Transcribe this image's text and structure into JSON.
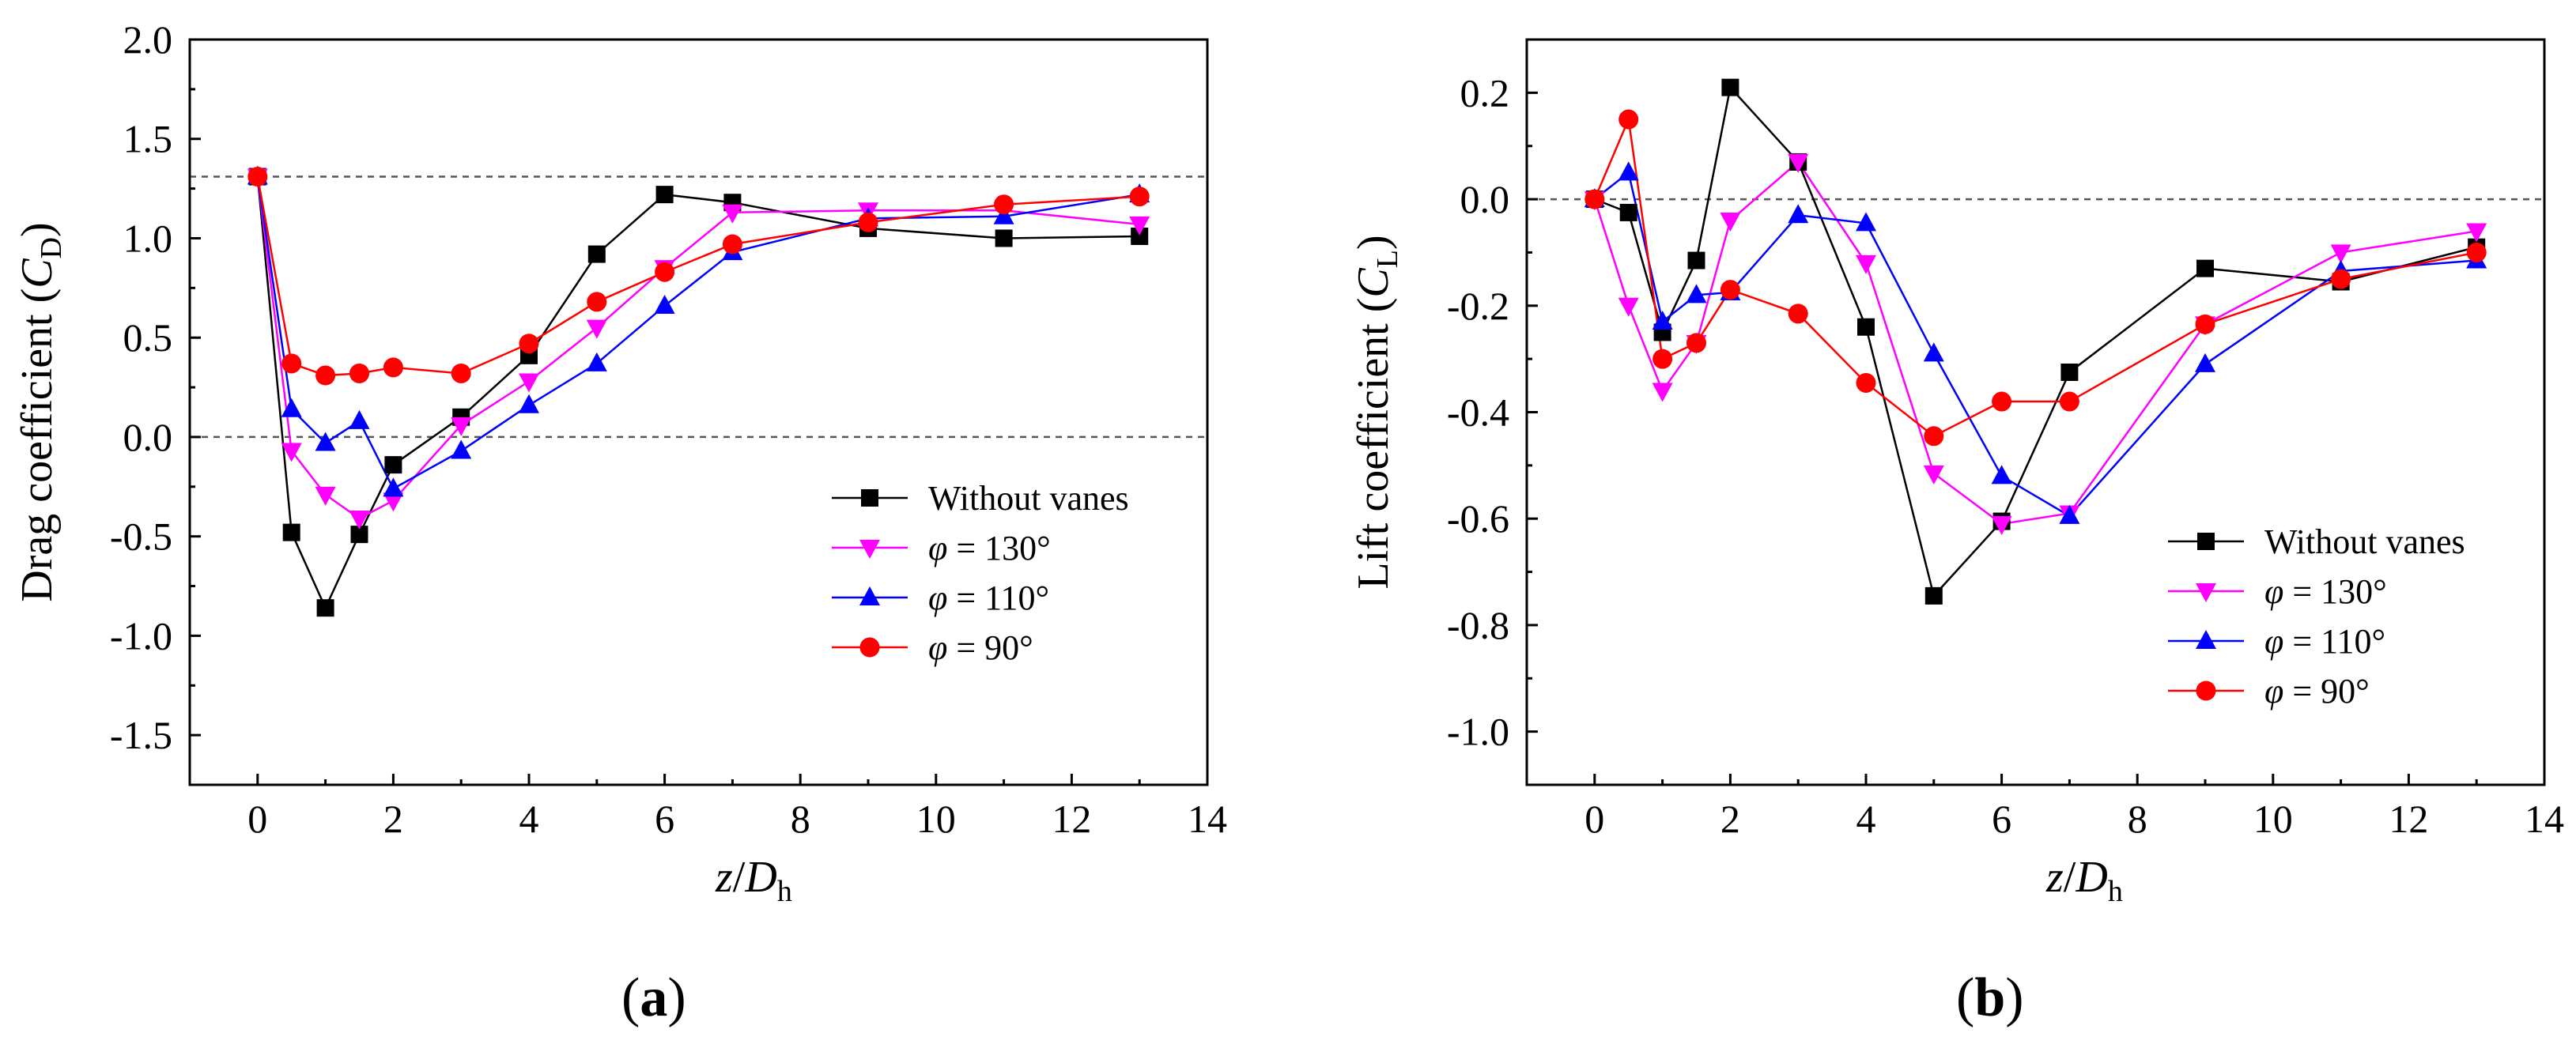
{
  "chart_data": [
    {
      "type": "line",
      "panel": "(a)",
      "panel_letter": "a",
      "ylabel": {
        "prefix": "Drag coefficient (",
        "var": "C",
        "sub": "D",
        "suffix": ")"
      },
      "xlabel": {
        "var": "z",
        "slash": "/",
        "var2": "D",
        "sub": "h"
      },
      "xlim": [
        -1,
        14
      ],
      "ylim": [
        -1.75,
        2.0
      ],
      "xticks": [
        0,
        2,
        4,
        6,
        8,
        10,
        12,
        14
      ],
      "yticks": [
        2.0,
        1.5,
        1.0,
        0.5,
        0.0,
        -0.5,
        -1.0,
        -1.5
      ],
      "ytick_labels": [
        "2.0",
        "1.5",
        "1.0",
        "0.5",
        "0.0",
        "-0.5",
        "-1.0",
        "-1.5"
      ],
      "ref_lines": [
        1.31,
        0.0
      ],
      "legend_position": "right-middle",
      "series": [
        {
          "name": "Without vanes",
          "color": "#000000",
          "marker": "square",
          "x": [
            0,
            0.5,
            1,
            1.5,
            2,
            3,
            4,
            5,
            6,
            7,
            9,
            11,
            13
          ],
          "y": [
            1.31,
            -0.48,
            -0.86,
            -0.49,
            -0.14,
            0.1,
            0.41,
            0.92,
            1.22,
            1.18,
            1.05,
            1.0,
            1.01
          ]
        },
        {
          "name": "φ = 130°",
          "var": "φ",
          "value": " = 130°",
          "color": "#ff00ff",
          "marker": "triangle-down",
          "x": [
            0,
            0.5,
            1,
            1.5,
            2,
            3,
            4,
            5,
            6,
            7,
            9,
            11,
            13
          ],
          "y": [
            1.31,
            -0.07,
            -0.29,
            -0.41,
            -0.32,
            0.06,
            0.28,
            0.55,
            0.85,
            1.13,
            1.14,
            1.14,
            1.07
          ]
        },
        {
          "name": "φ = 110°",
          "var": "φ",
          "value": " = 110°",
          "color": "#0000ff",
          "marker": "triangle-up",
          "x": [
            0,
            0.5,
            1,
            1.5,
            2,
            3,
            4,
            5,
            6,
            7,
            9,
            11,
            13
          ],
          "y": [
            1.31,
            0.14,
            -0.03,
            0.08,
            -0.26,
            -0.07,
            0.16,
            0.37,
            0.66,
            0.93,
            1.1,
            1.11,
            1.22
          ]
        },
        {
          "name": "φ = 90°",
          "var": "φ",
          "value": " = 90°",
          "color": "#ff0000",
          "marker": "circle",
          "x": [
            0,
            0.5,
            1,
            1.5,
            2,
            3,
            4,
            5,
            6,
            7,
            9,
            11,
            13
          ],
          "y": [
            1.31,
            0.37,
            0.31,
            0.32,
            0.35,
            0.32,
            0.47,
            0.68,
            0.83,
            0.97,
            1.08,
            1.17,
            1.21
          ]
        }
      ]
    },
    {
      "type": "line",
      "panel": "(b)",
      "panel_letter": "b",
      "ylabel": {
        "prefix": "Lift coefficient (",
        "var": "C",
        "sub": "L",
        "suffix": ")"
      },
      "xlabel": {
        "var": "z",
        "slash": "/",
        "var2": "D",
        "sub": "h"
      },
      "xlim": [
        -1,
        14
      ],
      "ylim": [
        -1.1,
        0.3
      ],
      "xticks": [
        0,
        2,
        4,
        6,
        8,
        10,
        12,
        14
      ],
      "yticks": [
        0.2,
        0.0,
        -0.2,
        -0.4,
        -0.6,
        -0.8,
        -1.0
      ],
      "ytick_labels": [
        "0.2",
        "0.0",
        "-0.2",
        "-0.4",
        "-0.6",
        "-0.8",
        "-1.0"
      ],
      "ref_lines": [
        0.0
      ],
      "legend_position": "bottom-right",
      "series": [
        {
          "name": "Without vanes",
          "color": "#000000",
          "marker": "square",
          "x": [
            0,
            0.5,
            1,
            1.5,
            2,
            3,
            4,
            5,
            6,
            7,
            9,
            11,
            13
          ],
          "y": [
            0.0,
            -0.025,
            -0.25,
            -0.115,
            0.21,
            0.07,
            -0.24,
            -0.745,
            -0.605,
            -0.325,
            -0.13,
            -0.155,
            -0.09
          ]
        },
        {
          "name": "φ = 130°",
          "var": "φ",
          "value": " = 130°",
          "color": "#ff00ff",
          "marker": "triangle-down",
          "x": [
            0,
            0.5,
            1,
            1.5,
            2,
            3,
            4,
            5,
            6,
            7,
            9,
            11,
            13
          ],
          "y": [
            0.0,
            -0.2,
            -0.36,
            -0.27,
            -0.04,
            0.07,
            -0.12,
            -0.515,
            -0.61,
            -0.59,
            -0.235,
            -0.1,
            -0.06
          ]
        },
        {
          "name": "φ = 110°",
          "var": "φ",
          "value": " = 110°",
          "color": "#0000ff",
          "marker": "triangle-up",
          "x": [
            0,
            0.5,
            1,
            1.5,
            2,
            3,
            4,
            5,
            6,
            7,
            9,
            11,
            13
          ],
          "y": [
            0.0,
            0.05,
            -0.23,
            -0.18,
            -0.175,
            -0.03,
            -0.045,
            -0.29,
            -0.52,
            -0.595,
            -0.31,
            -0.135,
            -0.115
          ]
        },
        {
          "name": "φ = 90°",
          "var": "φ",
          "value": " = 90°",
          "color": "#ff0000",
          "marker": "circle",
          "x": [
            0,
            0.5,
            1,
            1.5,
            2,
            3,
            4,
            5,
            6,
            7,
            9,
            11,
            13
          ],
          "y": [
            0.0,
            0.15,
            -0.3,
            -0.27,
            -0.17,
            -0.215,
            -0.345,
            -0.445,
            -0.38,
            -0.38,
            -0.235,
            -0.15,
            -0.1
          ]
        }
      ]
    }
  ]
}
